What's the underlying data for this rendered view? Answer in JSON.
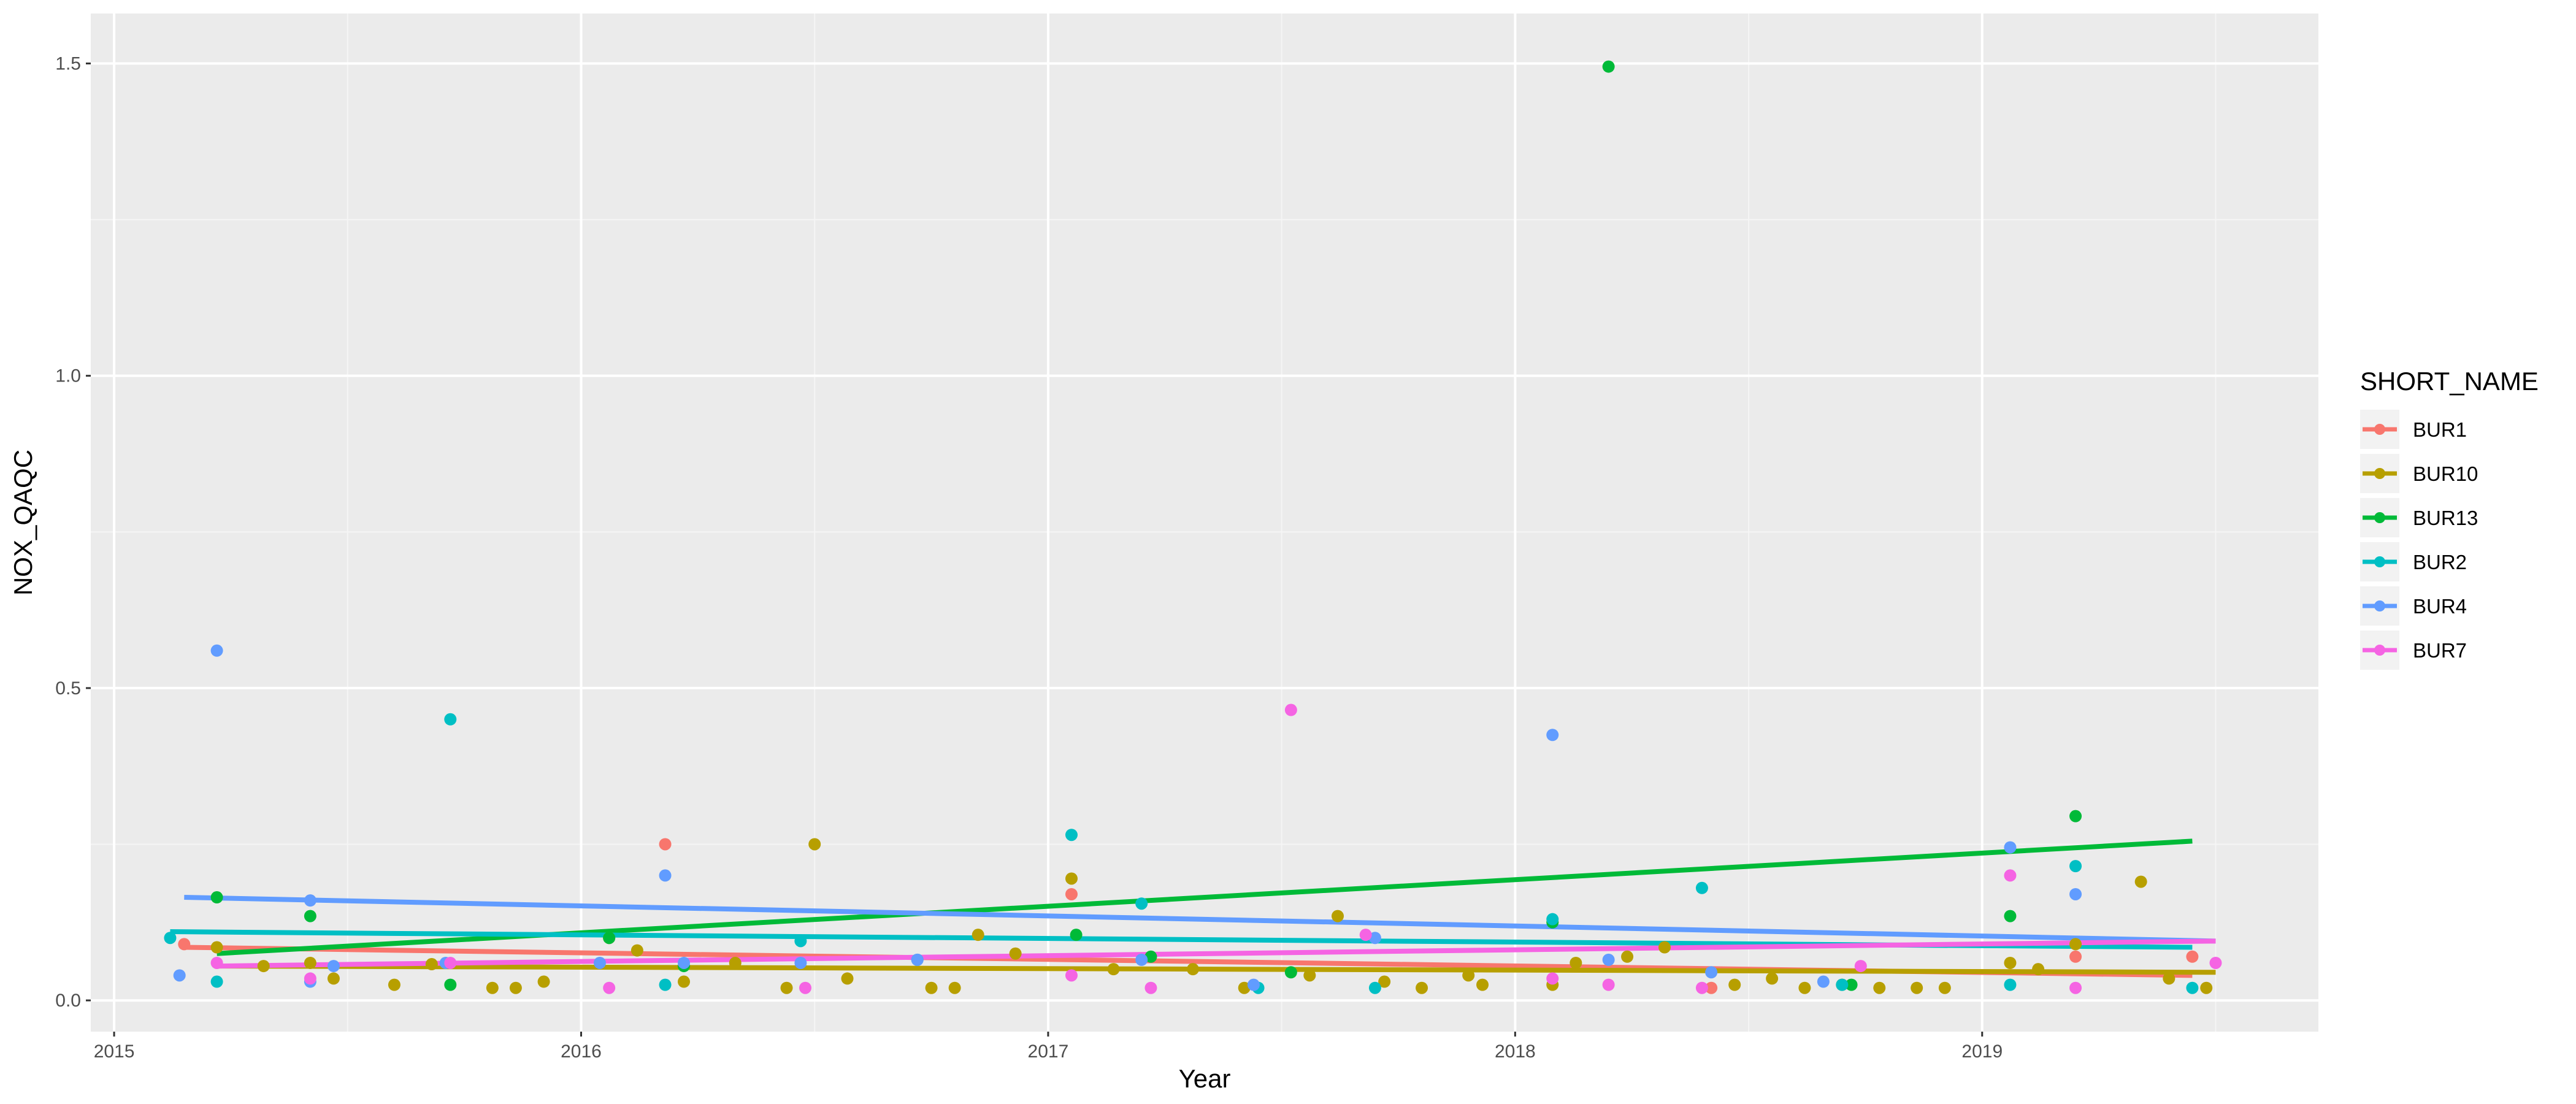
{
  "chart_data": {
    "type": "scatter",
    "xlabel": "Year",
    "ylabel": "NOX_QAQC",
    "xlim": [
      2014.95,
      2019.72
    ],
    "ylim": [
      -0.05,
      1.58
    ],
    "x_ticks": [
      2015,
      2016,
      2017,
      2018,
      2019
    ],
    "x_tick_labels": [
      "2015",
      "2016",
      "2017",
      "2018",
      "2019"
    ],
    "y_ticks": [
      0.0,
      0.5,
      1.0,
      1.5
    ],
    "y_tick_labels": [
      "0.0",
      "0.5",
      "1.0",
      "1.5"
    ],
    "grid": true,
    "legend": {
      "title": "SHORT_NAME",
      "position": "right"
    },
    "series": [
      {
        "name": "BUR1",
        "color": "#F8766D",
        "points": [
          [
            2015.15,
            0.09
          ],
          [
            2016.18,
            0.25
          ],
          [
            2017.05,
            0.17
          ],
          [
            2018.42,
            0.02
          ],
          [
            2019.2,
            0.07
          ],
          [
            2019.45,
            0.07
          ]
        ],
        "trend": [
          [
            2015.15,
            0.085
          ],
          [
            2019.45,
            0.04
          ]
        ]
      },
      {
        "name": "BUR10",
        "color": "#B79F00",
        "points": [
          [
            2015.22,
            0.085
          ],
          [
            2015.32,
            0.055
          ],
          [
            2015.42,
            0.06
          ],
          [
            2015.47,
            0.035
          ],
          [
            2015.6,
            0.025
          ],
          [
            2015.68,
            0.058
          ],
          [
            2015.81,
            0.02
          ],
          [
            2015.86,
            0.02
          ],
          [
            2015.92,
            0.03
          ],
          [
            2016.06,
            0.1
          ],
          [
            2016.12,
            0.08
          ],
          [
            2016.22,
            0.03
          ],
          [
            2016.33,
            0.06
          ],
          [
            2016.44,
            0.02
          ],
          [
            2016.5,
            0.25
          ],
          [
            2016.57,
            0.035
          ],
          [
            2016.75,
            0.02
          ],
          [
            2016.8,
            0.02
          ],
          [
            2016.85,
            0.105
          ],
          [
            2016.93,
            0.075
          ],
          [
            2017.05,
            0.195
          ],
          [
            2017.14,
            0.05
          ],
          [
            2017.31,
            0.05
          ],
          [
            2017.42,
            0.02
          ],
          [
            2017.56,
            0.04
          ],
          [
            2017.62,
            0.135
          ],
          [
            2017.72,
            0.03
          ],
          [
            2017.8,
            0.02
          ],
          [
            2017.9,
            0.04
          ],
          [
            2017.93,
            0.025
          ],
          [
            2018.08,
            0.025
          ],
          [
            2018.13,
            0.06
          ],
          [
            2018.24,
            0.07
          ],
          [
            2018.32,
            0.085
          ],
          [
            2018.47,
            0.025
          ],
          [
            2018.55,
            0.035
          ],
          [
            2018.62,
            0.02
          ],
          [
            2018.7,
            0.025
          ],
          [
            2018.78,
            0.02
          ],
          [
            2018.86,
            0.02
          ],
          [
            2018.92,
            0.02
          ],
          [
            2019.06,
            0.06
          ],
          [
            2019.12,
            0.05
          ],
          [
            2019.2,
            0.09
          ],
          [
            2019.34,
            0.19
          ],
          [
            2019.4,
            0.035
          ],
          [
            2019.48,
            0.02
          ]
        ],
        "trend": [
          [
            2015.22,
            0.055
          ],
          [
            2019.5,
            0.045
          ]
        ]
      },
      {
        "name": "BUR13",
        "color": "#00BA38",
        "points": [
          [
            2015.22,
            0.165
          ],
          [
            2015.42,
            0.135
          ],
          [
            2015.72,
            0.025
          ],
          [
            2016.06,
            0.1
          ],
          [
            2016.22,
            0.055
          ],
          [
            2017.06,
            0.105
          ],
          [
            2017.22,
            0.07
          ],
          [
            2017.52,
            0.045
          ],
          [
            2018.08,
            0.125
          ],
          [
            2018.2,
            1.495
          ],
          [
            2018.72,
            0.025
          ],
          [
            2019.06,
            0.135
          ],
          [
            2019.2,
            0.295
          ]
        ],
        "trend": [
          [
            2015.22,
            0.075
          ],
          [
            2019.45,
            0.255
          ]
        ]
      },
      {
        "name": "BUR2",
        "color": "#00BFC4",
        "points": [
          [
            2015.12,
            0.1
          ],
          [
            2015.22,
            0.03
          ],
          [
            2015.72,
            0.45
          ],
          [
            2016.18,
            0.025
          ],
          [
            2016.47,
            0.095
          ],
          [
            2016.72,
            0.065
          ],
          [
            2017.05,
            0.265
          ],
          [
            2017.2,
            0.155
          ],
          [
            2017.45,
            0.02
          ],
          [
            2017.7,
            0.02
          ],
          [
            2018.08,
            0.13
          ],
          [
            2018.4,
            0.18
          ],
          [
            2018.7,
            0.025
          ],
          [
            2019.06,
            0.025
          ],
          [
            2019.2,
            0.215
          ],
          [
            2019.45,
            0.02
          ]
        ],
        "trend": [
          [
            2015.12,
            0.11
          ],
          [
            2019.45,
            0.085
          ]
        ]
      },
      {
        "name": "BUR4",
        "color": "#619CFF",
        "points": [
          [
            2015.14,
            0.04
          ],
          [
            2015.22,
            0.56
          ],
          [
            2015.42,
            0.16
          ],
          [
            2015.42,
            0.03
          ],
          [
            2015.47,
            0.055
          ],
          [
            2015.71,
            0.06
          ],
          [
            2016.04,
            0.06
          ],
          [
            2016.18,
            0.2
          ],
          [
            2016.22,
            0.06
          ],
          [
            2016.47,
            0.06
          ],
          [
            2016.72,
            0.065
          ],
          [
            2017.2,
            0.065
          ],
          [
            2017.44,
            0.025
          ],
          [
            2017.7,
            0.1
          ],
          [
            2018.08,
            0.425
          ],
          [
            2018.2,
            0.065
          ],
          [
            2018.42,
            0.045
          ],
          [
            2018.66,
            0.03
          ],
          [
            2019.06,
            0.245
          ],
          [
            2019.2,
            0.17
          ]
        ],
        "trend": [
          [
            2015.15,
            0.165
          ],
          [
            2019.5,
            0.095
          ]
        ]
      },
      {
        "name": "BUR7",
        "color": "#F564E3",
        "points": [
          [
            2015.22,
            0.06
          ],
          [
            2015.42,
            0.035
          ],
          [
            2015.72,
            0.06
          ],
          [
            2016.06,
            0.02
          ],
          [
            2016.48,
            0.02
          ],
          [
            2017.05,
            0.04
          ],
          [
            2017.22,
            0.02
          ],
          [
            2017.52,
            0.465
          ],
          [
            2017.68,
            0.105
          ],
          [
            2018.08,
            0.035
          ],
          [
            2018.2,
            0.025
          ],
          [
            2018.4,
            0.02
          ],
          [
            2018.74,
            0.055
          ],
          [
            2019.06,
            0.2
          ],
          [
            2019.2,
            0.02
          ],
          [
            2019.5,
            0.06
          ]
        ],
        "trend": [
          [
            2015.22,
            0.055
          ],
          [
            2019.5,
            0.095
          ]
        ]
      }
    ]
  }
}
